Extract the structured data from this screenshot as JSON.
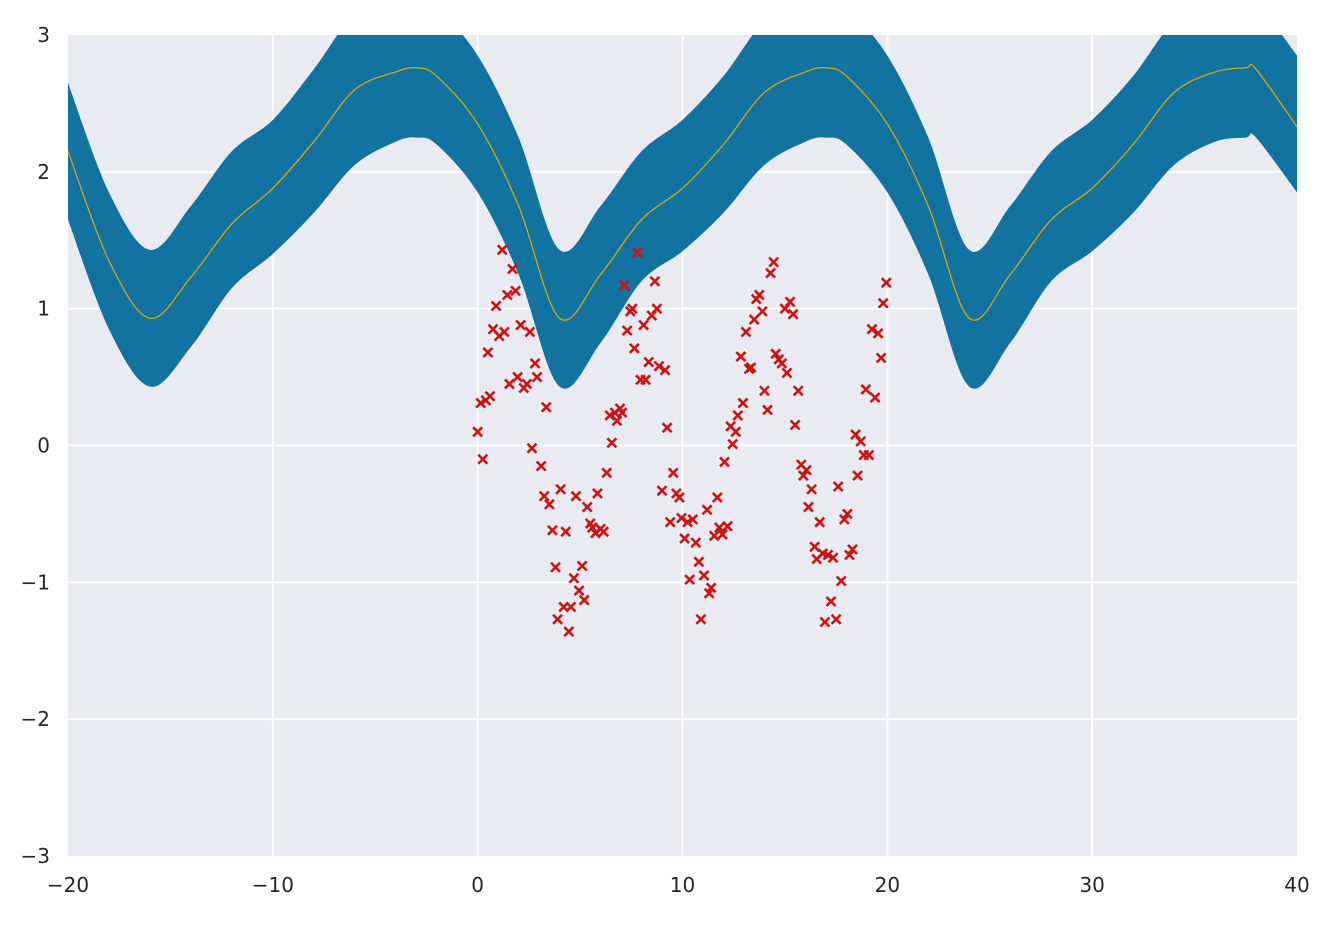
{
  "chart_data": {
    "type": "scatter",
    "title": "",
    "xlabel": "",
    "ylabel": "",
    "xlim": [
      -20,
      40
    ],
    "ylim": [
      -3,
      3
    ],
    "xticks": [
      -20,
      -10,
      0,
      10,
      20,
      30,
      40
    ],
    "yticks": [
      -3,
      -2,
      -1,
      0,
      1,
      2,
      3
    ],
    "xtick_labels": [
      "−20",
      "−10",
      "0",
      "10",
      "20",
      "30",
      "40"
    ],
    "ytick_labels": [
      "−3",
      "−2",
      "−1",
      "0",
      "1",
      "2",
      "3"
    ],
    "grid": true,
    "legend": "none",
    "colors": {
      "background": "#eaeaf2",
      "band": "#1273a0",
      "mean_line": "#e6a800",
      "points": "#cc1414"
    },
    "series": [
      {
        "kind": "band",
        "x": [
          -20,
          -18,
          -16,
          -14,
          -12,
          -10,
          -8,
          -6,
          -4,
          -3,
          -2,
          0,
          2,
          4,
          6,
          8,
          10,
          12,
          14,
          16,
          17,
          18,
          20,
          22,
          24,
          26,
          28,
          30,
          32,
          34,
          36,
          37.5,
          38,
          40
        ],
        "lower": [
          1.65,
          0.85,
          0.43,
          0.72,
          1.15,
          1.4,
          1.7,
          2.05,
          2.22,
          2.25,
          2.2,
          1.85,
          1.25,
          0.43,
          0.75,
          1.2,
          1.42,
          1.7,
          2.05,
          2.22,
          2.25,
          2.2,
          1.85,
          1.25,
          0.43,
          0.75,
          1.2,
          1.42,
          1.7,
          2.05,
          2.22,
          2.25,
          2.25,
          1.85
        ],
        "upper": [
          2.65,
          1.85,
          1.43,
          1.75,
          2.15,
          2.38,
          2.75,
          3.15,
          3.25,
          3.27,
          3.2,
          2.85,
          2.25,
          1.43,
          1.75,
          2.15,
          2.38,
          2.7,
          3.1,
          3.25,
          3.27,
          3.2,
          2.85,
          2.25,
          1.43,
          1.75,
          2.15,
          2.38,
          2.7,
          3.1,
          3.25,
          3.27,
          3.25,
          2.85
        ]
      },
      {
        "kind": "line",
        "x": [
          -20,
          -18,
          -16,
          -14,
          -12,
          -10,
          -8,
          -6,
          -4,
          -3,
          -2,
          0,
          2,
          4,
          6,
          8,
          10,
          12,
          14,
          16,
          17,
          18,
          20,
          22,
          24,
          26,
          28,
          30,
          32,
          34,
          36,
          37.5,
          38,
          40
        ],
        "y": [
          2.15,
          1.35,
          0.93,
          1.23,
          1.62,
          1.88,
          2.22,
          2.6,
          2.73,
          2.76,
          2.7,
          2.35,
          1.75,
          0.93,
          1.25,
          1.65,
          1.88,
          2.2,
          2.58,
          2.73,
          2.76,
          2.7,
          2.35,
          1.75,
          0.93,
          1.25,
          1.65,
          1.88,
          2.2,
          2.58,
          2.73,
          2.76,
          2.75,
          2.33
        ]
      },
      {
        "kind": "scatter",
        "marker": "x",
        "points": [
          [
            0.0,
            0.1
          ],
          [
            0.15,
            0.31
          ],
          [
            0.25,
            -0.1
          ],
          [
            0.4,
            0.33
          ],
          [
            0.5,
            0.68
          ],
          [
            0.6,
            0.36
          ],
          [
            0.75,
            0.85
          ],
          [
            0.9,
            1.02
          ],
          [
            1.05,
            0.8
          ],
          [
            1.2,
            1.43
          ],
          [
            1.3,
            0.83
          ],
          [
            1.45,
            1.1
          ],
          [
            1.55,
            0.45
          ],
          [
            1.7,
            1.29
          ],
          [
            1.85,
            1.13
          ],
          [
            1.95,
            0.5
          ],
          [
            2.1,
            0.88
          ],
          [
            2.25,
            0.42
          ],
          [
            2.4,
            0.45
          ],
          [
            2.55,
            0.83
          ],
          [
            2.65,
            -0.02
          ],
          [
            2.8,
            0.6
          ],
          [
            2.9,
            0.5
          ],
          [
            3.1,
            -0.15
          ],
          [
            3.25,
            -0.37
          ],
          [
            3.35,
            0.28
          ],
          [
            3.5,
            -0.43
          ],
          [
            3.65,
            -0.62
          ],
          [
            3.8,
            -0.89
          ],
          [
            3.9,
            -1.27
          ],
          [
            4.05,
            -0.32
          ],
          [
            4.2,
            -1.18
          ],
          [
            4.3,
            -0.63
          ],
          [
            4.45,
            -1.36
          ],
          [
            4.55,
            -1.18
          ],
          [
            4.7,
            -0.97
          ],
          [
            4.8,
            -0.37
          ],
          [
            4.95,
            -1.06
          ],
          [
            5.1,
            -0.88
          ],
          [
            5.2,
            -1.13
          ],
          [
            5.35,
            -0.45
          ],
          [
            5.5,
            -0.57
          ],
          [
            5.6,
            -0.6
          ],
          [
            5.75,
            -0.64
          ],
          [
            5.85,
            -0.35
          ],
          [
            6.0,
            -0.61
          ],
          [
            6.15,
            -0.63
          ],
          [
            6.3,
            -0.2
          ],
          [
            6.45,
            0.22
          ],
          [
            6.55,
            0.02
          ],
          [
            6.7,
            0.24
          ],
          [
            6.8,
            0.18
          ],
          [
            6.95,
            0.27
          ],
          [
            7.05,
            0.24
          ],
          [
            7.15,
            1.17
          ],
          [
            7.3,
            0.84
          ],
          [
            7.45,
            0.98
          ],
          [
            7.55,
            1.0
          ],
          [
            7.65,
            0.71
          ],
          [
            7.8,
            1.41
          ],
          [
            7.95,
            0.48
          ],
          [
            8.1,
            0.88
          ],
          [
            8.2,
            0.48
          ],
          [
            8.35,
            0.61
          ],
          [
            8.5,
            0.95
          ],
          [
            8.65,
            1.2
          ],
          [
            8.75,
            1.0
          ],
          [
            8.85,
            0.58
          ],
          [
            9.0,
            -0.33
          ],
          [
            9.15,
            0.55
          ],
          [
            9.25,
            0.13
          ],
          [
            9.4,
            -0.56
          ],
          [
            9.55,
            -0.2
          ],
          [
            9.7,
            -0.35
          ],
          [
            9.85,
            -0.38
          ],
          [
            9.95,
            -0.53
          ],
          [
            10.1,
            -0.68
          ],
          [
            10.25,
            -0.56
          ],
          [
            10.35,
            -0.98
          ],
          [
            10.5,
            -0.54
          ],
          [
            10.65,
            -0.71
          ],
          [
            10.8,
            -0.85
          ],
          [
            10.9,
            -1.27
          ],
          [
            11.05,
            -0.95
          ],
          [
            11.2,
            -0.47
          ],
          [
            11.3,
            -1.08
          ],
          [
            11.4,
            -1.04
          ],
          [
            11.55,
            -0.66
          ],
          [
            11.7,
            -0.38
          ],
          [
            11.8,
            -0.6
          ],
          [
            11.95,
            -0.65
          ],
          [
            12.05,
            -0.12
          ],
          [
            12.2,
            -0.59
          ],
          [
            12.35,
            0.14
          ],
          [
            12.45,
            0.01
          ],
          [
            12.6,
            0.1
          ],
          [
            12.7,
            0.22
          ],
          [
            12.85,
            0.65
          ],
          [
            12.95,
            0.31
          ],
          [
            13.1,
            0.83
          ],
          [
            13.25,
            0.56
          ],
          [
            13.35,
            0.57
          ],
          [
            13.5,
            0.92
          ],
          [
            13.6,
            1.07
          ],
          [
            13.75,
            1.1
          ],
          [
            13.9,
            0.98
          ],
          [
            14.0,
            0.4
          ],
          [
            14.15,
            0.26
          ],
          [
            14.3,
            1.26
          ],
          [
            14.45,
            1.34
          ],
          [
            14.55,
            0.67
          ],
          [
            14.7,
            0.63
          ],
          [
            14.85,
            0.6
          ],
          [
            15.0,
            1.0
          ],
          [
            15.1,
            0.53
          ],
          [
            15.25,
            1.05
          ],
          [
            15.4,
            0.96
          ],
          [
            15.5,
            0.15
          ],
          [
            15.65,
            0.4
          ],
          [
            15.8,
            -0.14
          ],
          [
            15.9,
            -0.22
          ],
          [
            16.05,
            -0.18
          ],
          [
            16.15,
            -0.45
          ],
          [
            16.3,
            -0.32
          ],
          [
            16.45,
            -0.74
          ],
          [
            16.55,
            -0.83
          ],
          [
            16.7,
            -0.56
          ],
          [
            16.85,
            -0.79
          ],
          [
            16.95,
            -1.29
          ],
          [
            17.1,
            -0.8
          ],
          [
            17.25,
            -1.14
          ],
          [
            17.35,
            -0.82
          ],
          [
            17.5,
            -1.27
          ],
          [
            17.6,
            -0.3
          ],
          [
            17.75,
            -0.99
          ],
          [
            17.9,
            -0.54
          ],
          [
            18.05,
            -0.5
          ],
          [
            18.15,
            -0.8
          ],
          [
            18.3,
            -0.76
          ],
          [
            18.45,
            0.08
          ],
          [
            18.55,
            -0.22
          ],
          [
            18.7,
            0.03
          ],
          [
            18.85,
            -0.07
          ],
          [
            18.95,
            0.41
          ],
          [
            19.1,
            -0.07
          ],
          [
            19.25,
            0.85
          ],
          [
            19.4,
            0.35
          ],
          [
            19.55,
            0.82
          ],
          [
            19.7,
            0.64
          ],
          [
            19.8,
            1.04
          ],
          [
            19.95,
            1.19
          ]
        ]
      }
    ]
  }
}
